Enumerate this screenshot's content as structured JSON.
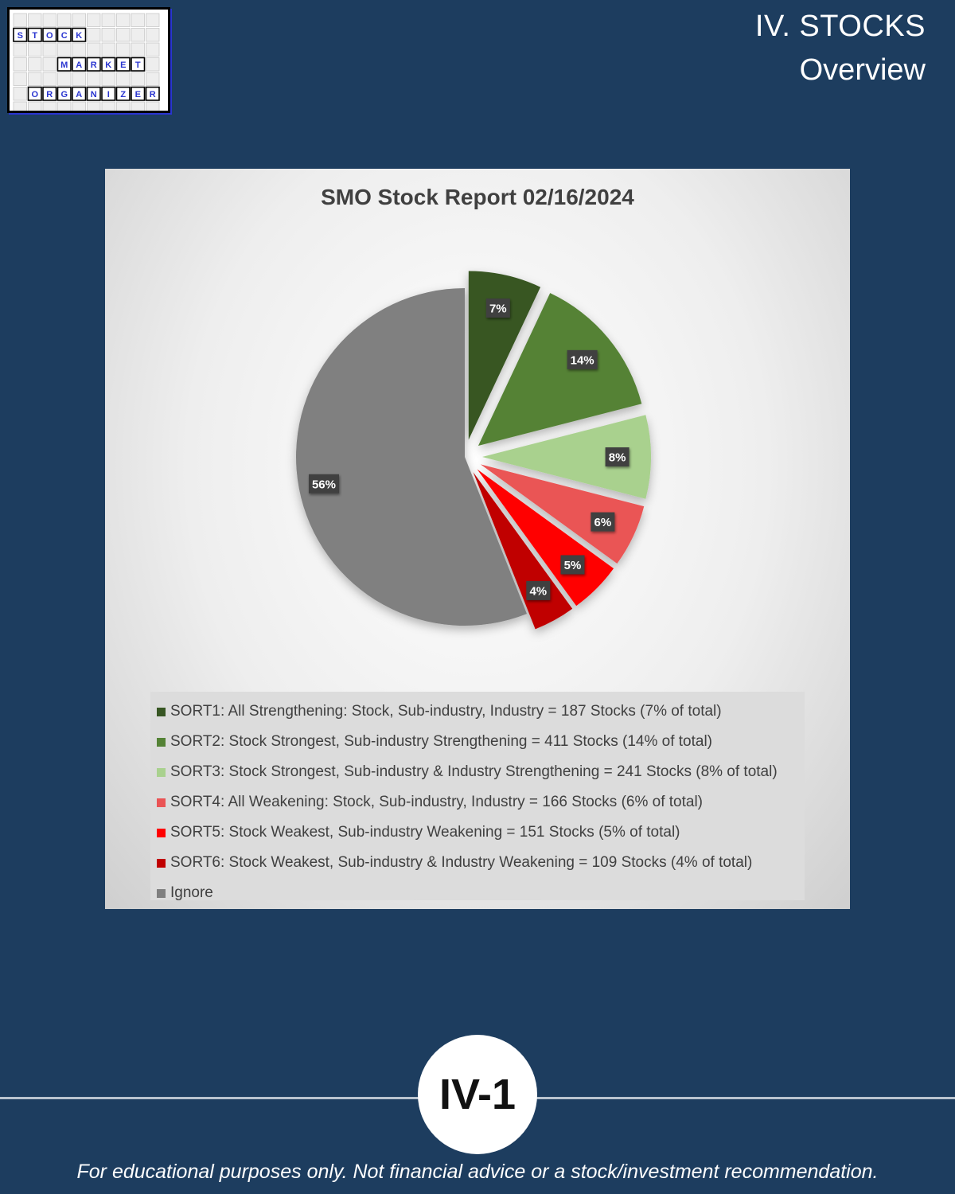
{
  "logo": {
    "rows": [
      {
        "letters": [
          "S",
          "T",
          "O",
          "C",
          "K"
        ]
      },
      {
        "letters": [
          "M",
          "A",
          "R",
          "K",
          "E",
          "T"
        ]
      },
      {
        "letters": [
          "O",
          "R",
          "G",
          "A",
          "N",
          "I",
          "Z",
          "E",
          "R"
        ]
      }
    ],
    "border_color": "#000000",
    "accent_color": "#2a35d0"
  },
  "header": {
    "title": "IV. STOCKS",
    "subtitle": "Overview"
  },
  "chart_data": {
    "type": "pie",
    "title": "SMO Stock Report 02/16/2024",
    "start": "12 o'clock, clockwise",
    "exploded": true,
    "legend_position": "bottom",
    "slices": [
      {
        "label": "SORT1: All Strengthening: Stock, Sub-industry, Industry = 187 Stocks (7% of total)",
        "value": 7,
        "pct_label": "7%",
        "color": "#375623"
      },
      {
        "label": "SORT2: Stock Strongest, Sub-industry Strengthening = 411 Stocks (14% of total)",
        "value": 14,
        "pct_label": "14%",
        "color": "#548235"
      },
      {
        "label": "SORT3: Stock Strongest, Sub-industry & Industry Strengthening = 241 Stocks (8% of total)",
        "value": 8,
        "pct_label": "8%",
        "color": "#a9d18e"
      },
      {
        "label": "SORT4: All Weakening: Stock, Sub-industry, Industry = 166 Stocks (6% of total)",
        "value": 6,
        "pct_label": "6%",
        "color": "#ea5455"
      },
      {
        "label": "SORT5: Stock Weakest, Sub-industry Weakening = 151 Stocks (5% of total)",
        "value": 5,
        "pct_label": "5%",
        "color": "#ff0000"
      },
      {
        "label": "SORT6: Stock Weakest, Sub-industry & Industry Weakening = 109 Stocks (4% of total)",
        "value": 4,
        "pct_label": "4%",
        "color": "#c00000"
      },
      {
        "label": "Ignore",
        "value": 56,
        "pct_label": "56%",
        "color": "#808080"
      }
    ]
  },
  "footer": {
    "page_label": "IV-1",
    "disclaimer": "For educational purposes only. Not financial advice or a stock/investment recommendation."
  }
}
